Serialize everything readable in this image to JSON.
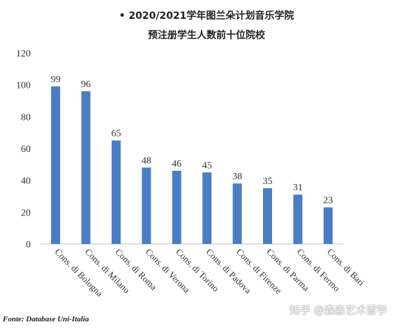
{
  "chart_data": {
    "type": "bar",
    "title": "• 2020/2021学年图兰朵计划音乐学院",
    "subtitle": "预注册学生人数前十位院校",
    "categories": [
      "Cons. di Bologna",
      "Cons. di Milano",
      "Cons. di Roma",
      "Cons. di Verona",
      "Cons. di Torino",
      "Cons. di Padova",
      "Cons. di Firenze",
      "Cons. di Parma",
      "Cons. di Fermo",
      "Cons. di Bari"
    ],
    "values": [
      99,
      96,
      65,
      48,
      46,
      45,
      38,
      35,
      31,
      23
    ],
    "yticks": [
      "0",
      "20",
      "40",
      "60",
      "80",
      "100",
      "120"
    ],
    "ylim": [
      0,
      120
    ],
    "grid": false,
    "bar_color": "#4a7ec4"
  },
  "source": "Fonte: Database Uni-Italia",
  "watermark": "知乎 @森淼艺术留学"
}
